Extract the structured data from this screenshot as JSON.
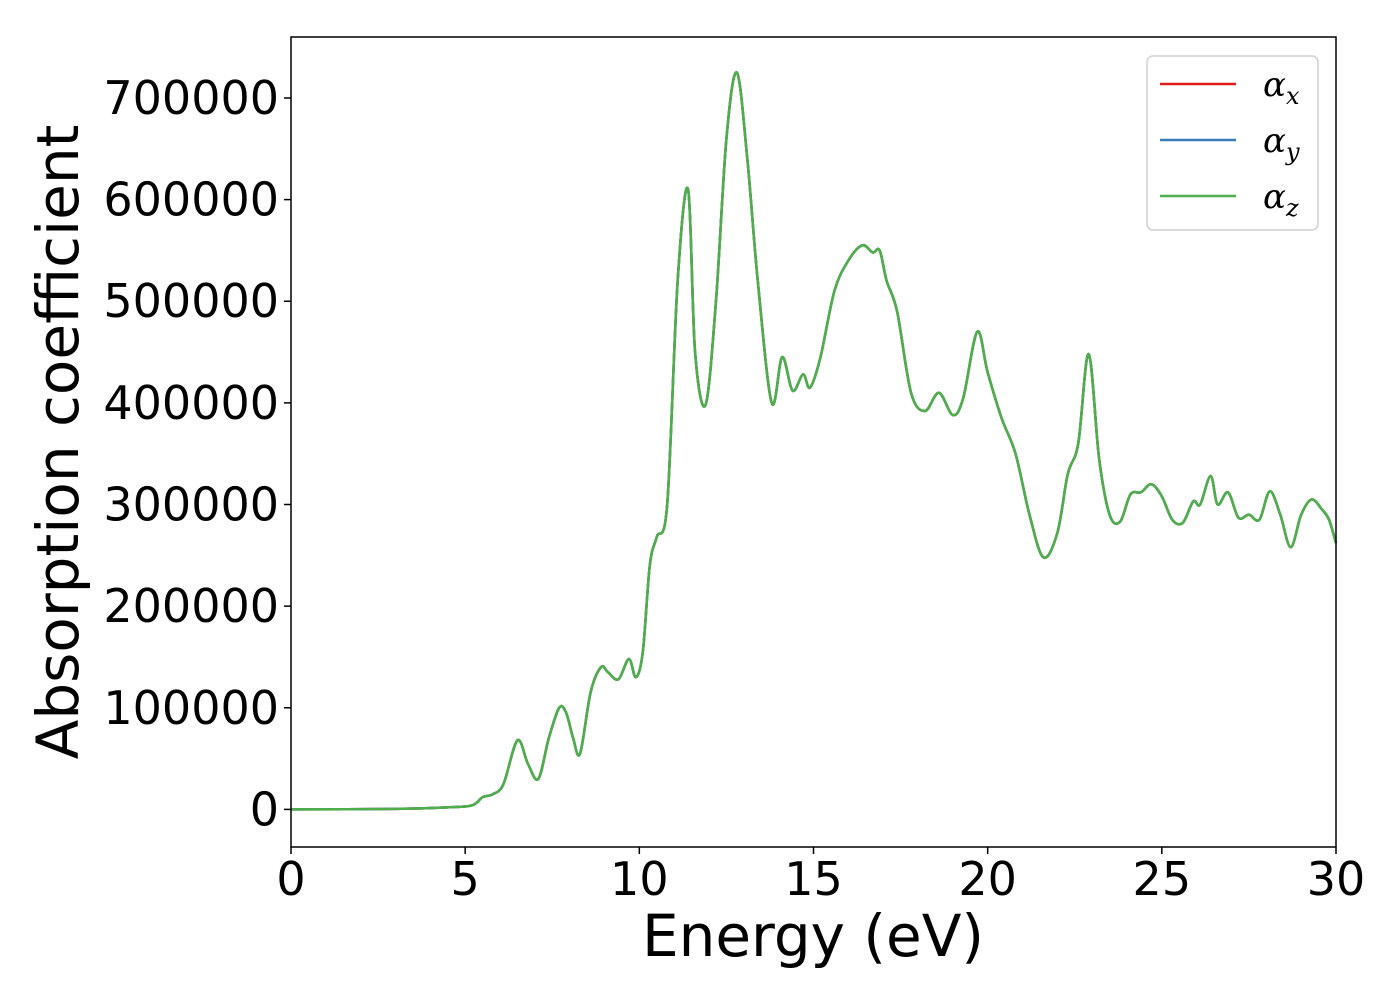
{
  "chart_data": {
    "type": "line",
    "xlabel": "Energy (eV)",
    "ylabel": "Absorption coefficient",
    "xlim": [
      0,
      30
    ],
    "ylim": [
      -37000,
      760000
    ],
    "xticks": [
      0,
      5,
      10,
      15,
      20,
      25,
      30
    ],
    "yticks": [
      0,
      100000,
      200000,
      300000,
      400000,
      500000,
      600000,
      700000
    ],
    "grid": false,
    "legend_position": "top-right",
    "series": [
      {
        "name": "α_x",
        "label_base": "α",
        "label_sub": "x",
        "color": "#e41a1c",
        "x": [
          0,
          3.0,
          4.5,
          5.2,
          5.5,
          5.8,
          6.1,
          6.5,
          6.8,
          7.1,
          7.4,
          7.7,
          7.9,
          8.1,
          8.3,
          8.6,
          8.9,
          9.1,
          9.4,
          9.7,
          9.9,
          10.1,
          10.3,
          10.5,
          10.8,
          11.1,
          11.4,
          11.6,
          11.9,
          12.2,
          12.5,
          12.8,
          13.1,
          13.4,
          13.8,
          14.1,
          14.4,
          14.7,
          14.9,
          15.2,
          15.6,
          16.0,
          16.4,
          16.7,
          16.9,
          17.1,
          17.4,
          17.8,
          18.2,
          18.6,
          19.0,
          19.3,
          19.7,
          20.0,
          20.4,
          20.8,
          21.2,
          21.6,
          22.0,
          22.3,
          22.6,
          22.9,
          23.2,
          23.5,
          23.8,
          24.1,
          24.4,
          24.7,
          25.0,
          25.3,
          25.6,
          25.9,
          26.1,
          26.4,
          26.6,
          26.9,
          27.2,
          27.5,
          27.8,
          28.1,
          28.4,
          28.7,
          29.0,
          29.3,
          29.6,
          29.8,
          30.0
        ],
        "values": [
          0,
          500,
          2000,
          4000,
          12000,
          15000,
          25000,
          68000,
          45000,
          30000,
          70000,
          100000,
          95000,
          70000,
          55000,
          115000,
          140000,
          135000,
          128000,
          148000,
          130000,
          155000,
          240000,
          268000,
          300000,
          520000,
          610000,
          450000,
          398000,
          500000,
          660000,
          725000,
          640000,
          520000,
          400000,
          445000,
          412000,
          428000,
          415000,
          445000,
          510000,
          540000,
          555000,
          548000,
          550000,
          520000,
          490000,
          410000,
          392000,
          410000,
          388000,
          405000,
          470000,
          430000,
          385000,
          350000,
          290000,
          248000,
          272000,
          330000,
          360000,
          448000,
          345000,
          290000,
          283000,
          310000,
          312000,
          320000,
          308000,
          285000,
          282000,
          303000,
          300000,
          328000,
          300000,
          312000,
          287000,
          290000,
          285000,
          313000,
          290000,
          258000,
          290000,
          305000,
          295000,
          285000,
          262000
        ]
      },
      {
        "name": "α_y",
        "label_base": "α",
        "label_sub": "y",
        "color": "#377eb8",
        "x": [
          0,
          3.0,
          4.5,
          5.2,
          5.5,
          5.8,
          6.1,
          6.5,
          6.8,
          7.1,
          7.4,
          7.7,
          7.9,
          8.1,
          8.3,
          8.6,
          8.9,
          9.1,
          9.4,
          9.7,
          9.9,
          10.1,
          10.3,
          10.5,
          10.8,
          11.1,
          11.4,
          11.6,
          11.9,
          12.2,
          12.5,
          12.8,
          13.1,
          13.4,
          13.8,
          14.1,
          14.4,
          14.7,
          14.9,
          15.2,
          15.6,
          16.0,
          16.4,
          16.7,
          16.9,
          17.1,
          17.4,
          17.8,
          18.2,
          18.6,
          19.0,
          19.3,
          19.7,
          20.0,
          20.4,
          20.8,
          21.2,
          21.6,
          22.0,
          22.3,
          22.6,
          22.9,
          23.2,
          23.5,
          23.8,
          24.1,
          24.4,
          24.7,
          25.0,
          25.3,
          25.6,
          25.9,
          26.1,
          26.4,
          26.6,
          26.9,
          27.2,
          27.5,
          27.8,
          28.1,
          28.4,
          28.7,
          29.0,
          29.3,
          29.6,
          29.8,
          30.0
        ],
        "values": [
          0,
          500,
          2000,
          4000,
          12000,
          15000,
          25000,
          68000,
          45000,
          30000,
          70000,
          100000,
          95000,
          70000,
          55000,
          115000,
          140000,
          135000,
          128000,
          148000,
          130000,
          155000,
          240000,
          268000,
          300000,
          520000,
          610000,
          450000,
          398000,
          500000,
          660000,
          725000,
          640000,
          520000,
          400000,
          445000,
          412000,
          428000,
          415000,
          445000,
          510000,
          540000,
          555000,
          548000,
          550000,
          520000,
          490000,
          410000,
          392000,
          410000,
          388000,
          405000,
          470000,
          430000,
          385000,
          350000,
          290000,
          248000,
          272000,
          330000,
          360000,
          448000,
          345000,
          290000,
          283000,
          310000,
          312000,
          320000,
          308000,
          285000,
          282000,
          303000,
          300000,
          328000,
          300000,
          312000,
          287000,
          290000,
          285000,
          313000,
          290000,
          258000,
          290000,
          305000,
          295000,
          285000,
          262000
        ]
      },
      {
        "name": "α_z",
        "label_base": "α",
        "label_sub": "z",
        "color": "#4daf4a",
        "x": [
          0,
          3.0,
          4.5,
          5.2,
          5.5,
          5.8,
          6.1,
          6.5,
          6.8,
          7.1,
          7.4,
          7.7,
          7.9,
          8.1,
          8.3,
          8.6,
          8.9,
          9.1,
          9.4,
          9.7,
          9.9,
          10.1,
          10.3,
          10.5,
          10.8,
          11.1,
          11.4,
          11.6,
          11.9,
          12.2,
          12.5,
          12.8,
          13.1,
          13.4,
          13.8,
          14.1,
          14.4,
          14.7,
          14.9,
          15.2,
          15.6,
          16.0,
          16.4,
          16.7,
          16.9,
          17.1,
          17.4,
          17.8,
          18.2,
          18.6,
          19.0,
          19.3,
          19.7,
          20.0,
          20.4,
          20.8,
          21.2,
          21.6,
          22.0,
          22.3,
          22.6,
          22.9,
          23.2,
          23.5,
          23.8,
          24.1,
          24.4,
          24.7,
          25.0,
          25.3,
          25.6,
          25.9,
          26.1,
          26.4,
          26.6,
          26.9,
          27.2,
          27.5,
          27.8,
          28.1,
          28.4,
          28.7,
          29.0,
          29.3,
          29.6,
          29.8,
          30.0
        ],
        "values": [
          0,
          500,
          2000,
          4000,
          12000,
          15000,
          25000,
          68000,
          45000,
          30000,
          70000,
          100000,
          95000,
          70000,
          55000,
          115000,
          140000,
          135000,
          128000,
          148000,
          130000,
          155000,
          240000,
          268000,
          300000,
          520000,
          610000,
          450000,
          398000,
          500000,
          660000,
          725000,
          640000,
          520000,
          400000,
          445000,
          412000,
          428000,
          415000,
          445000,
          510000,
          540000,
          555000,
          548000,
          550000,
          520000,
          490000,
          410000,
          392000,
          410000,
          388000,
          405000,
          470000,
          430000,
          385000,
          350000,
          290000,
          248000,
          272000,
          330000,
          360000,
          448000,
          345000,
          290000,
          283000,
          310000,
          312000,
          320000,
          308000,
          285000,
          282000,
          303000,
          300000,
          328000,
          300000,
          312000,
          287000,
          290000,
          285000,
          313000,
          290000,
          258000,
          290000,
          305000,
          295000,
          285000,
          262000
        ]
      }
    ]
  }
}
